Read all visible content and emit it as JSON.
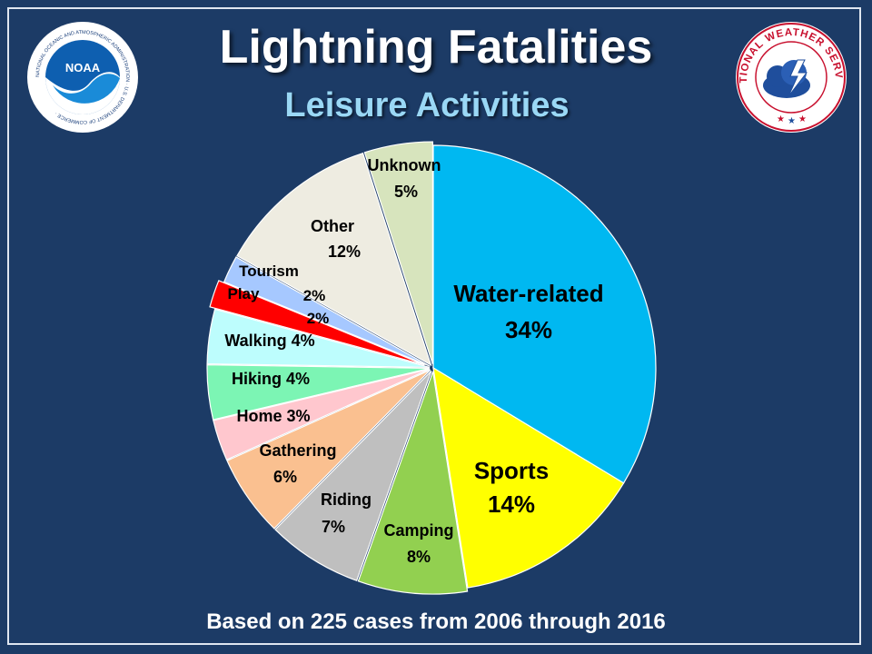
{
  "header": {
    "title": "Lightning Fatalities",
    "subtitle": "Leisure Activities"
  },
  "footer": {
    "note": "Based on 225 cases from 2006 through 2016"
  },
  "logos": {
    "left": {
      "text": "NOAA",
      "ring_text": "NATIONAL OCEANIC AND ATMOSPHERIC ADMINISTRATION · U.S. DEPARTMENT OF COMMERCE ·",
      "icon": "noaa-logo-icon"
    },
    "right": {
      "ring_text": "NATIONAL WEATHER SERVICE",
      "icon": "nws-logo-icon"
    }
  },
  "chart_data": {
    "type": "pie",
    "start_angle_deg": 0,
    "direction": "clockwise",
    "slices": [
      {
        "label": "Water-related",
        "pct_label": "34%",
        "value": 34,
        "color": "#00b8f1"
      },
      {
        "label": "Sports",
        "pct_label": "14%",
        "value": 14,
        "color": "#ffff00"
      },
      {
        "label": "Camping",
        "pct_label": "8%",
        "value": 8,
        "color": "#92d050"
      },
      {
        "label": "Riding",
        "pct_label": "7%",
        "value": 7,
        "color": "#bfbfbf"
      },
      {
        "label": "Gathering",
        "pct_label": "6%",
        "value": 6,
        "color": "#fac090"
      },
      {
        "label": "Home",
        "pct_label": "3%",
        "value": 3,
        "color": "#ffc7ce"
      },
      {
        "label": "Hiking",
        "pct_label": "4%",
        "value": 4,
        "color": "#7cf5b4"
      },
      {
        "label": "Walking",
        "pct_label": "4%",
        "value": 4,
        "color": "#bdfdfd"
      },
      {
        "label": "Play",
        "pct_label": "2%",
        "value": 2,
        "color": "#ff0000"
      },
      {
        "label": "Tourism",
        "pct_label": "2%",
        "value": 2,
        "color": "#a6c8ff"
      },
      {
        "label": "Other",
        "pct_label": "12%",
        "value": 12,
        "color": "#eeece1"
      },
      {
        "label": "Unknown",
        "pct_label": "5%",
        "value": 5,
        "color": "#d7e4bd"
      }
    ]
  }
}
